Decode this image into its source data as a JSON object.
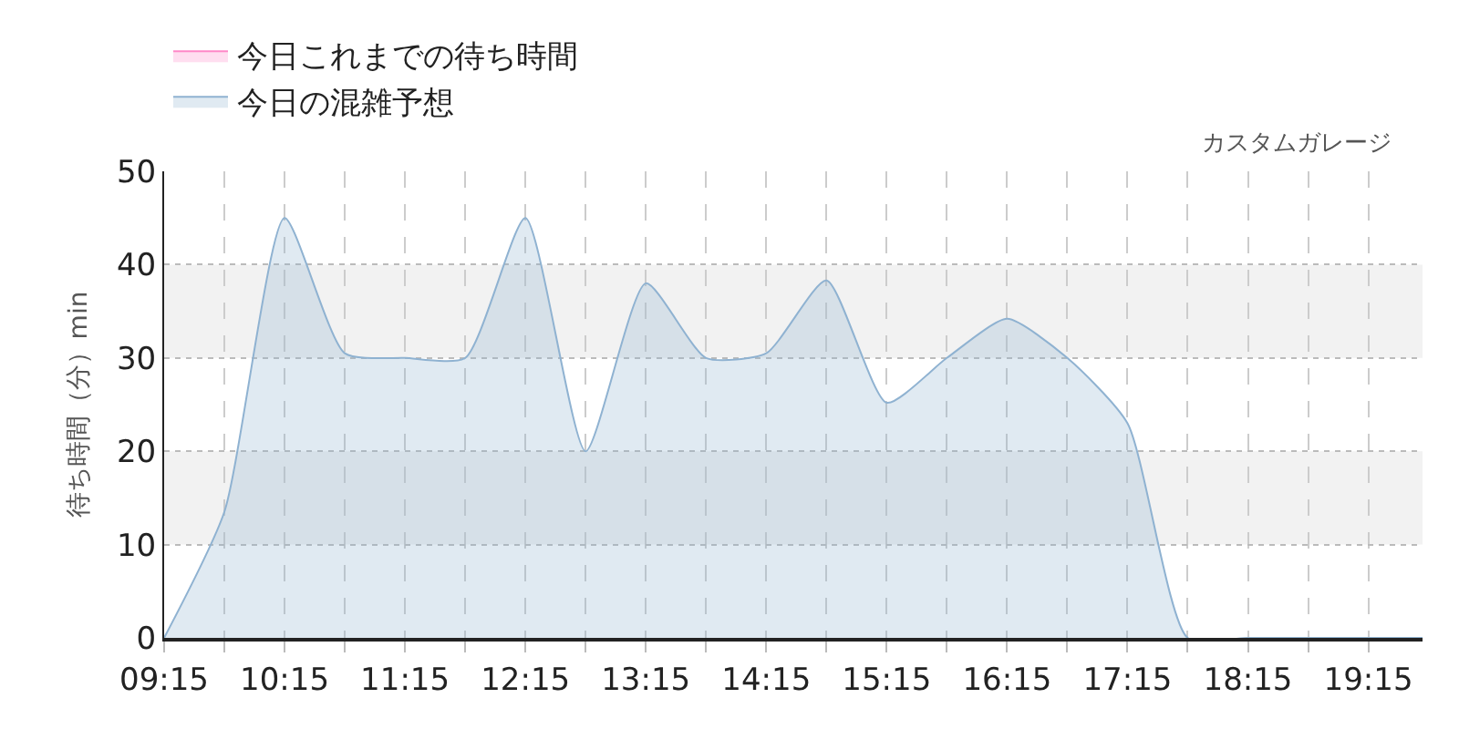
{
  "chart_data": {
    "type": "area",
    "title": "カスタムガレージ",
    "ylabel": "待ち時間（分）min",
    "x": [
      9.25,
      9.75,
      10.25,
      10.75,
      11.25,
      11.75,
      12.25,
      12.75,
      13.25,
      13.75,
      14.25,
      14.75,
      15.25,
      15.75,
      16.25,
      16.75,
      17.25,
      17.75,
      18.25,
      18.75,
      19.25,
      19.7
    ],
    "series": [
      {
        "name": "今日これまでの待ち時間",
        "color": "#ff88c8",
        "values": [
          null,
          null,
          null,
          null,
          null,
          null,
          null,
          null,
          null,
          null,
          null,
          null,
          null,
          null,
          null,
          null,
          null,
          null,
          null,
          null,
          null,
          null
        ]
      },
      {
        "name": "今日の混雑予想",
        "color": "#8fb2d1",
        "values": [
          0,
          13.5,
          45,
          30.5,
          30,
          30,
          45,
          20,
          38,
          30,
          30.5,
          38.3,
          25.2,
          30,
          34.2,
          30,
          23,
          0,
          0,
          0,
          0,
          0
        ]
      }
    ],
    "xlim": [
      9.25,
      19.7
    ],
    "xticks": [
      {
        "value": 9.25,
        "label": "09:15"
      },
      {
        "value": 9.75,
        "label": null
      },
      {
        "value": 10.25,
        "label": "10:15"
      },
      {
        "value": 10.75,
        "label": null
      },
      {
        "value": 11.25,
        "label": "11:15"
      },
      {
        "value": 11.75,
        "label": null
      },
      {
        "value": 12.25,
        "label": "12:15"
      },
      {
        "value": 12.75,
        "label": null
      },
      {
        "value": 13.25,
        "label": "13:15"
      },
      {
        "value": 13.75,
        "label": null
      },
      {
        "value": 14.25,
        "label": "14:15"
      },
      {
        "value": 14.75,
        "label": null
      },
      {
        "value": 15.25,
        "label": "15:15"
      },
      {
        "value": 15.75,
        "label": null
      },
      {
        "value": 16.25,
        "label": "16:15"
      },
      {
        "value": 16.75,
        "label": null
      },
      {
        "value": 17.25,
        "label": "17:15"
      },
      {
        "value": 17.75,
        "label": null
      },
      {
        "value": 18.25,
        "label": "18:15"
      },
      {
        "value": 18.75,
        "label": null
      },
      {
        "value": 19.25,
        "label": "19:15"
      }
    ],
    "ylim": [
      0,
      50
    ],
    "yticks": [
      0,
      10,
      20,
      30,
      40,
      50
    ],
    "bands": [
      {
        "axis": "y",
        "from": 10,
        "to": 20,
        "color": "#f2f2f2"
      },
      {
        "axis": "y",
        "from": 30,
        "to": 40,
        "color": "#f2f2f2"
      }
    ],
    "grid": true,
    "legend": "top left",
    "line_style": "solid"
  }
}
